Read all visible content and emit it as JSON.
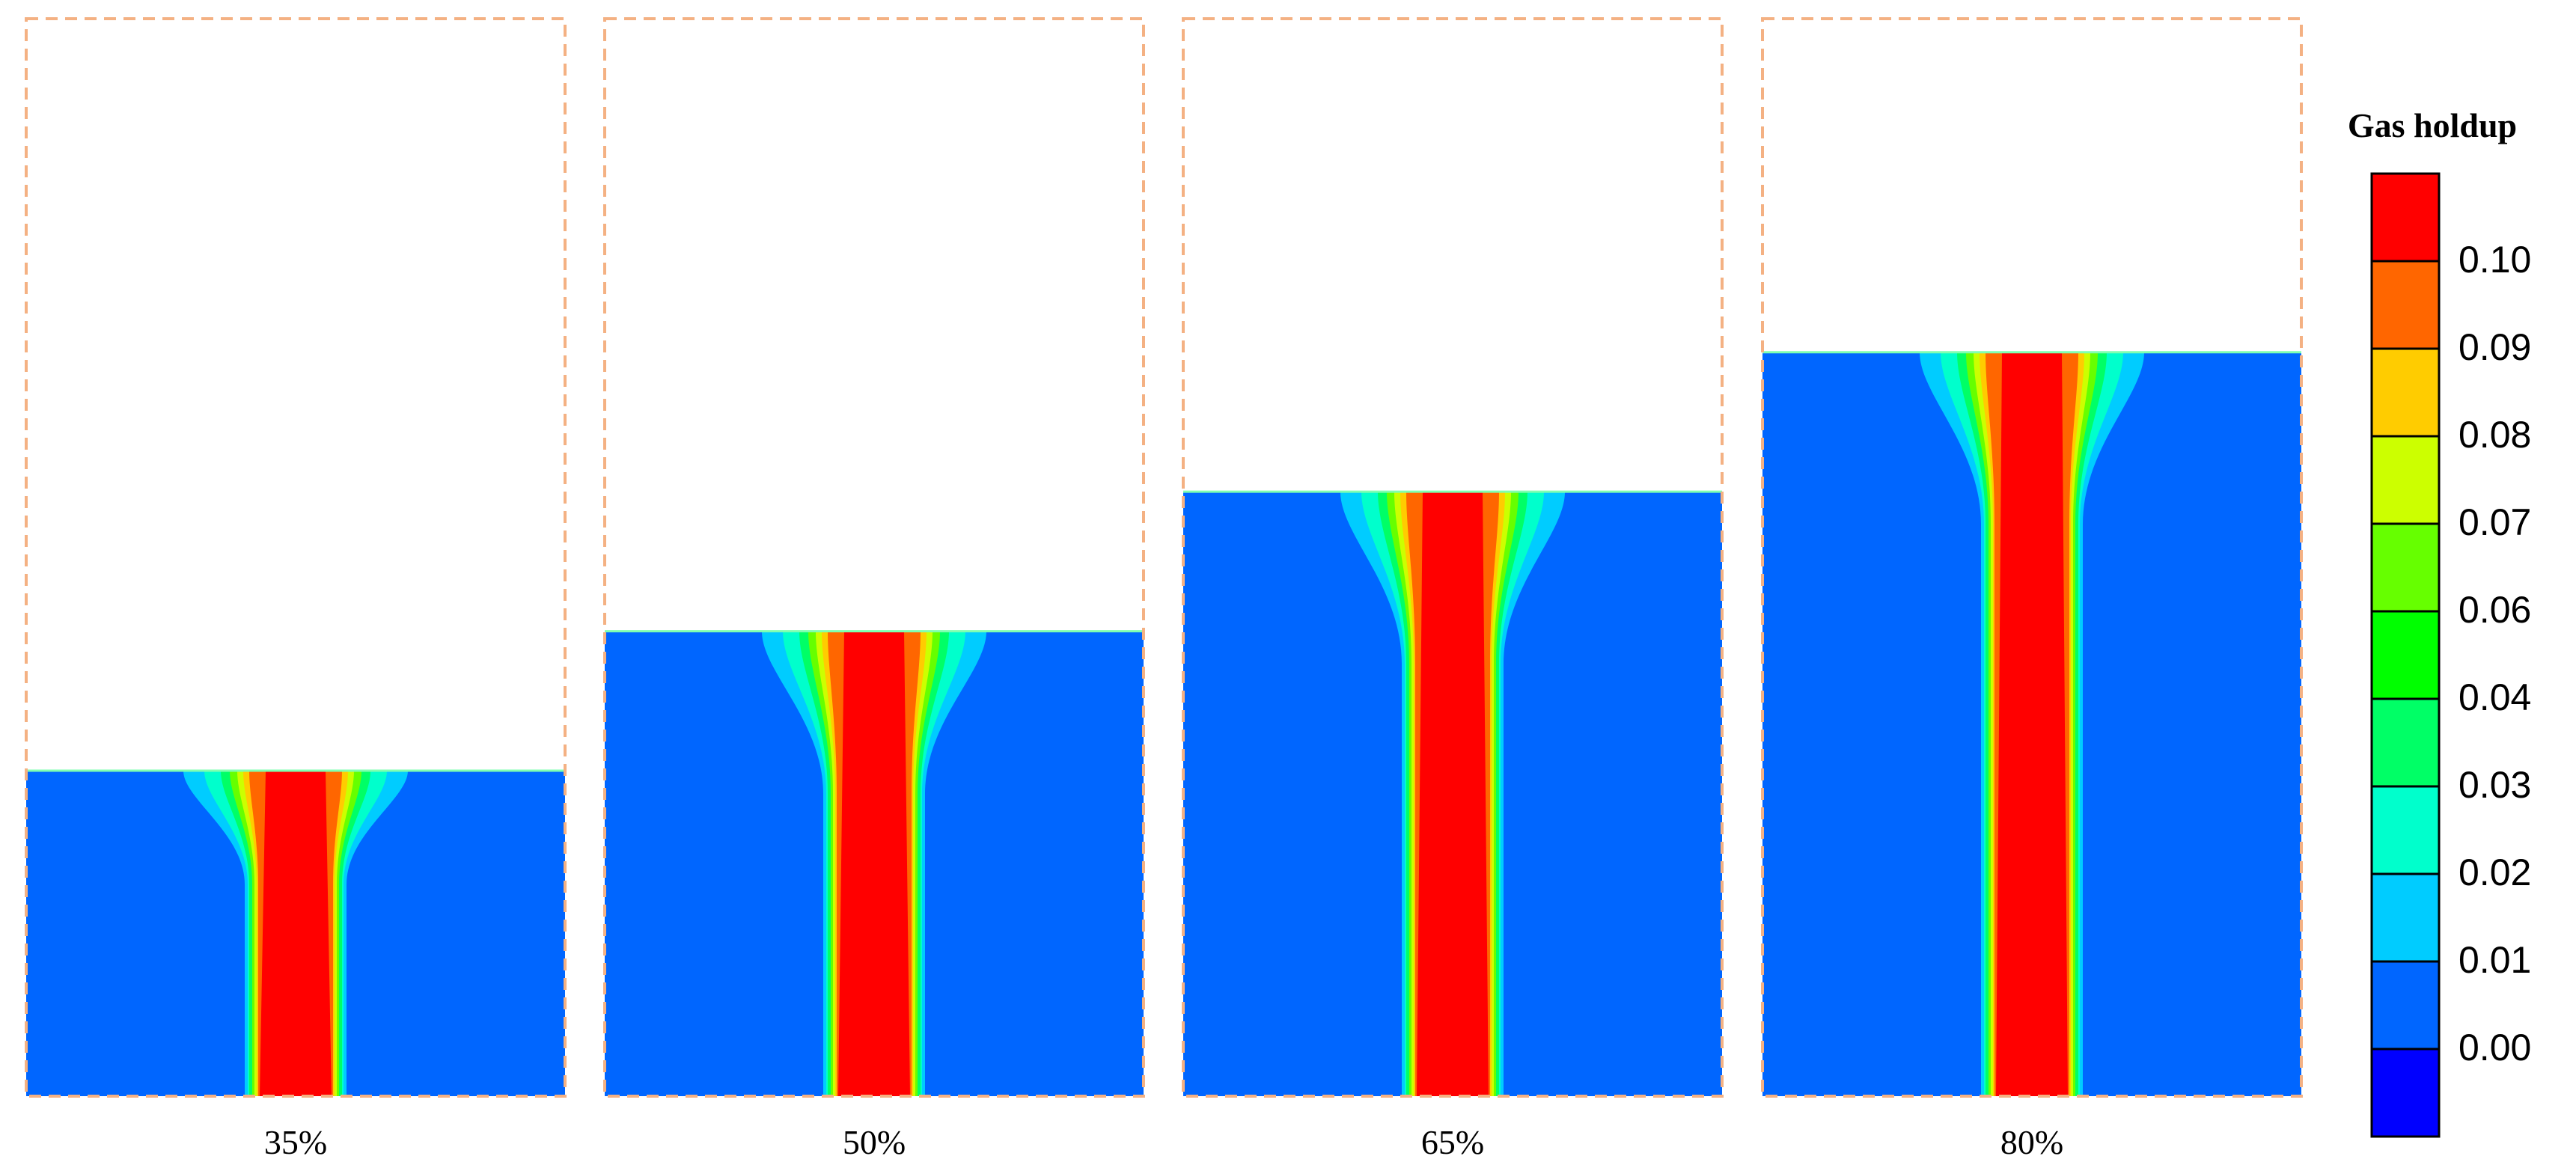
{
  "panels": [
    {
      "label": "35%",
      "fill_level": 0.35
    },
    {
      "label": "50%",
      "fill_level": 0.5
    },
    {
      "label": "65%",
      "fill_level": 0.65
    },
    {
      "label": "80%",
      "fill_level": 0.8
    }
  ],
  "legend": {
    "title": "Gas holdup",
    "ticks": [
      "0.10",
      "0.09",
      "0.08",
      "0.07",
      "0.06",
      "0.04",
      "0.03",
      "0.02",
      "0.01",
      "0.00"
    ],
    "colors": [
      "#ff0000",
      "#ff6600",
      "#ffcc00",
      "#ccff00",
      "#66ff00",
      "#00ff00",
      "#00ff66",
      "#00ffcc",
      "#00ccff",
      "#0066ff",
      "#0000ff"
    ]
  },
  "colors": {
    "liquid_blue": "#0066ff",
    "tank_outline": "#f4b183",
    "core_red": "#ff0000"
  }
}
